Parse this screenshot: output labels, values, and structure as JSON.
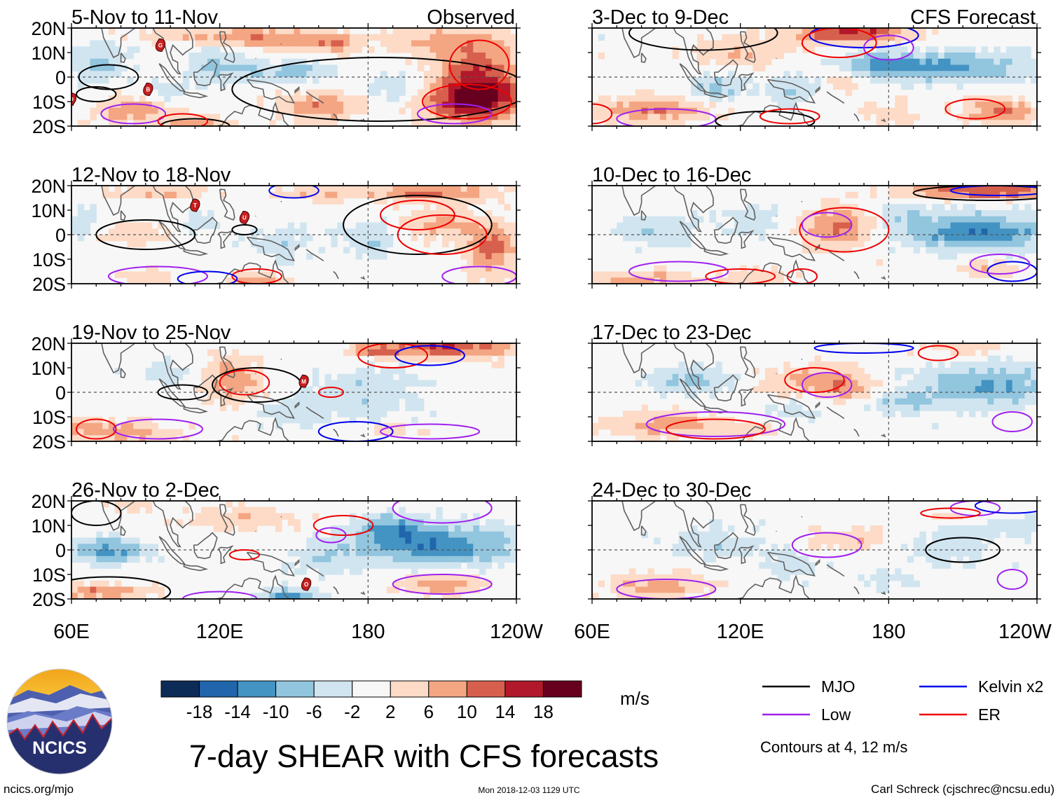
{
  "chart_data": {
    "type": "heatmap",
    "title": "7-day SHEAR with CFS forecasts",
    "x_ticks": [
      "60E",
      "120E",
      "180",
      "120W"
    ],
    "y_ticks": [
      "20N",
      "10N",
      "0",
      "10S",
      "20S"
    ],
    "x_range_deg_east": [
      60,
      240
    ],
    "y_range_deg": [
      -20,
      20
    ],
    "colorbar": {
      "unit": "m/s",
      "levels": [
        "-18",
        "-14",
        "-10",
        "-6",
        "-2",
        "2",
        "6",
        "10",
        "14",
        "18"
      ],
      "colors": [
        "#0d2b57",
        "#2166ac",
        "#4393c3",
        "#92c5de",
        "#d1e5f0",
        "#f7f7f7",
        "#fddbc7",
        "#f4a582",
        "#d6604d",
        "#b2182b",
        "#67001f"
      ]
    },
    "legend": {
      "entries": [
        {
          "label": "MJO",
          "color": "#000000"
        },
        {
          "label": "Kelvin x2",
          "color": "#0000ee"
        },
        {
          "label": "Low",
          "color": "#a020f0"
        },
        {
          "label": "ER",
          "color": "#ee0000"
        }
      ],
      "note": "Contours at 4, 12 m/s"
    },
    "panels": [
      {
        "period": "5-Nov to 11-Nov",
        "tag": "Observed",
        "column": "left",
        "row": 0,
        "cyclones": [
          "G",
          "B",
          "D"
        ]
      },
      {
        "period": "12-Nov to 18-Nov",
        "tag": "",
        "column": "left",
        "row": 1,
        "cyclones": [
          "T",
          "U"
        ]
      },
      {
        "period": "19-Nov to 25-Nov",
        "tag": "",
        "column": "left",
        "row": 2,
        "cyclones": [
          "M"
        ]
      },
      {
        "period": "26-Nov to 2-Dec",
        "tag": "",
        "column": "left",
        "row": 3,
        "cyclones": [
          "O"
        ]
      },
      {
        "period": "3-Dec to 9-Dec",
        "tag": "CFS Forecast",
        "column": "right",
        "row": 0,
        "cyclones": []
      },
      {
        "period": "10-Dec to 16-Dec",
        "tag": "",
        "column": "right",
        "row": 1,
        "cyclones": []
      },
      {
        "period": "17-Dec to 23-Dec",
        "tag": "",
        "column": "right",
        "row": 2,
        "cyclones": []
      },
      {
        "period": "24-Dec to 30-Dec",
        "tag": "",
        "column": "right",
        "row": 3,
        "cyclones": []
      }
    ]
  },
  "footer": {
    "logo_text": "NCICS",
    "site": "ncics.org/mjo",
    "timestamp": "Mon 2018-12-03 1129 UTC",
    "credit": "Carl Schreck (cjschrec@ncsu.edu)"
  }
}
